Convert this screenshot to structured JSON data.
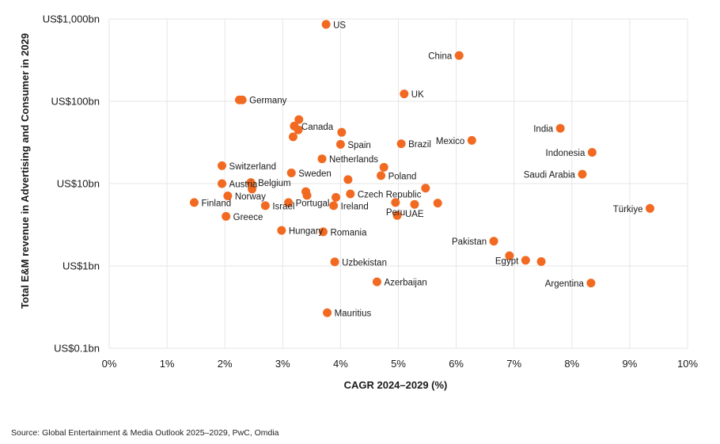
{
  "source_note": "Source: Global Entertainment & Media Outlook 2025–2029, PwC, Omdia",
  "colors": {
    "point": "#f26a21",
    "grid": "#e6e6e6",
    "text": "#1a1a1a"
  },
  "chart_data": {
    "type": "scatter",
    "title": "",
    "xlabel": "CAGR 2024–2029 (%)",
    "ylabel": "Total E&M revenue in Advertising and Consumer in 2029",
    "xlim": [
      0,
      10
    ],
    "ylim_bn": [
      0.1,
      1000
    ],
    "y_scale": "log",
    "grid": true,
    "x_ticks": [
      {
        "value": 0,
        "label": "0%"
      },
      {
        "value": 1,
        "label": "1%"
      },
      {
        "value": 2,
        "label": "2%"
      },
      {
        "value": 3,
        "label": "3%"
      },
      {
        "value": 4,
        "label": "4%"
      },
      {
        "value": 5,
        "label": "5%"
      },
      {
        "value": 6,
        "label": "6%"
      },
      {
        "value": 7,
        "label": "7%"
      },
      {
        "value": 8,
        "label": "8%"
      },
      {
        "value": 9,
        "label": "9%"
      },
      {
        "value": 10,
        "label": "10%"
      }
    ],
    "y_ticks": [
      {
        "value": 0.1,
        "label": "US$0.1bn"
      },
      {
        "value": 1,
        "label": "US$1bn"
      },
      {
        "value": 10,
        "label": "US$10bn"
      },
      {
        "value": 100,
        "label": "US$100bn"
      },
      {
        "value": 1000,
        "label": "US$1,000bn"
      }
    ],
    "points": [
      {
        "label": "US",
        "x": 3.75,
        "y": 860,
        "label_pos": "right"
      },
      {
        "label": "China",
        "x": 6.05,
        "y": 360,
        "label_pos": "left"
      },
      {
        "label": "UK",
        "x": 5.1,
        "y": 123,
        "label_pos": "right"
      },
      {
        "label": "Germany",
        "x": 2.3,
        "y": 104,
        "label_pos": "right"
      },
      {
        "label": "",
        "x": 2.25,
        "y": 104
      },
      {
        "label": "India",
        "x": 7.8,
        "y": 47,
        "label_pos": "left"
      },
      {
        "label": "Indonesia",
        "x": 8.35,
        "y": 24,
        "label_pos": "left"
      },
      {
        "label": "Saudi Arabia",
        "x": 8.18,
        "y": 13,
        "label_pos": "left"
      },
      {
        "label": "Mexico",
        "x": 6.27,
        "y": 33.5,
        "label_pos": "left"
      },
      {
        "label": "Brazil",
        "x": 5.05,
        "y": 30.5,
        "label_pos": "right"
      },
      {
        "label": "Canada",
        "x": 3.2,
        "y": 50,
        "label_pos": "right"
      },
      {
        "label": "",
        "x": 3.28,
        "y": 60
      },
      {
        "label": "",
        "x": 3.27,
        "y": 45
      },
      {
        "label": "",
        "x": 3.18,
        "y": 37
      },
      {
        "label": "",
        "x": 4.02,
        "y": 42
      },
      {
        "label": "Spain",
        "x": 4.0,
        "y": 30,
        "label_pos": "right"
      },
      {
        "label": "Netherlands",
        "x": 3.68,
        "y": 20,
        "label_pos": "right"
      },
      {
        "label": "Switzerland",
        "x": 1.95,
        "y": 16.5,
        "label_pos": "right"
      },
      {
        "label": "Sweden",
        "x": 3.15,
        "y": 13.5,
        "label_pos": "right"
      },
      {
        "label": "Poland",
        "x": 4.7,
        "y": 12.5,
        "label_pos": "right"
      },
      {
        "label": "",
        "x": 4.75,
        "y": 15.8
      },
      {
        "label": "",
        "x": 4.13,
        "y": 11.2
      },
      {
        "label": "Austria",
        "x": 1.95,
        "y": 10,
        "label_pos": "right"
      },
      {
        "label": "Belgium",
        "x": 2.45,
        "y": 10.3,
        "label_pos": "right"
      },
      {
        "label": "",
        "x": 2.47,
        "y": 8.6
      },
      {
        "label": "Norway",
        "x": 2.05,
        "y": 7.1,
        "label_pos": "right"
      },
      {
        "label": "Finland",
        "x": 1.47,
        "y": 5.9,
        "label_pos": "right"
      },
      {
        "label": "Greece",
        "x": 2.02,
        "y": 4.0,
        "label_pos": "right"
      },
      {
        "label": "Israel",
        "x": 2.7,
        "y": 5.4,
        "label_pos": "right"
      },
      {
        "label": "Portugal",
        "x": 3.1,
        "y": 5.9,
        "label_pos": "right"
      },
      {
        "label": "",
        "x": 3.4,
        "y": 8.0
      },
      {
        "label": "",
        "x": 3.42,
        "y": 7.2
      },
      {
        "label": "Czech Republic",
        "x": 4.17,
        "y": 7.5,
        "label_pos": "right"
      },
      {
        "label": "",
        "x": 3.92,
        "y": 6.8
      },
      {
        "label": "Ireland",
        "x": 3.88,
        "y": 5.4,
        "label_pos": "right"
      },
      {
        "label": "",
        "x": 5.47,
        "y": 8.8
      },
      {
        "label": "",
        "x": 5.68,
        "y": 5.8
      },
      {
        "label": "Peru",
        "x": 4.95,
        "y": 5.9,
        "label_pos": "below-left"
      },
      {
        "label": "UAE",
        "x": 5.28,
        "y": 5.6,
        "label_pos": "below-left"
      },
      {
        "label": "",
        "x": 4.98,
        "y": 4.1
      },
      {
        "label": "Türkiye",
        "x": 9.35,
        "y": 5.0,
        "label_pos": "left"
      },
      {
        "label": "Hungary",
        "x": 2.98,
        "y": 2.7,
        "label_pos": "right"
      },
      {
        "label": "Romania",
        "x": 3.7,
        "y": 2.6,
        "label_pos": "right"
      },
      {
        "label": "Pakistan",
        "x": 6.65,
        "y": 2.0,
        "label_pos": "left"
      },
      {
        "label": "Egypt",
        "x": 7.2,
        "y": 1.17,
        "label_pos": "left"
      },
      {
        "label": "",
        "x": 6.92,
        "y": 1.33
      },
      {
        "label": "",
        "x": 7.47,
        "y": 1.13
      },
      {
        "label": "Uzbekistan",
        "x": 3.9,
        "y": 1.12,
        "label_pos": "right"
      },
      {
        "label": "Azerbaijan",
        "x": 4.63,
        "y": 0.64,
        "label_pos": "right"
      },
      {
        "label": "Argentina",
        "x": 8.33,
        "y": 0.62,
        "label_pos": "left"
      },
      {
        "label": "Mauritius",
        "x": 3.77,
        "y": 0.27,
        "label_pos": "right"
      }
    ]
  }
}
